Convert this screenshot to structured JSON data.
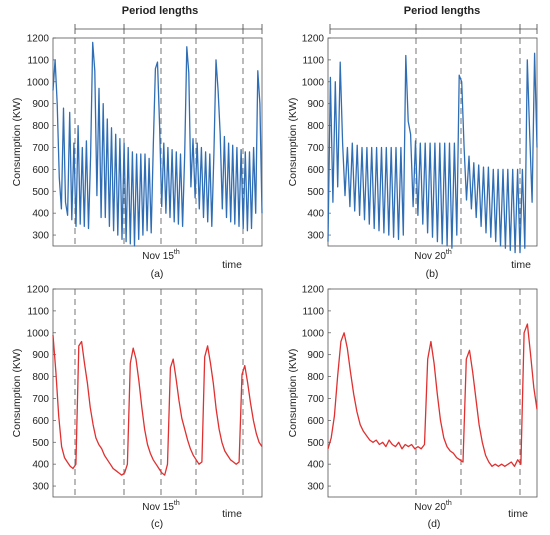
{
  "chart_data": [
    {
      "id": "a",
      "type": "line",
      "panel_label": "(a)",
      "top_label": "Period lengths",
      "ylabel": "Consumption (KW)",
      "ylim": [
        250,
        1200
      ],
      "yticks": [
        300,
        400,
        500,
        600,
        700,
        800,
        900,
        1000,
        1100,
        1200
      ],
      "x_markers": [
        {
          "label": "Nov 15",
          "sup": "th"
        }
      ],
      "x_axis_label": "time",
      "grid": false,
      "series": [
        {
          "color": "#2f6eb5",
          "values": [
            960,
            1100,
            900,
            560,
            420,
            880,
            450,
            390,
            860,
            370,
            720,
            340,
            800,
            350,
            700,
            340,
            730,
            330,
            660,
            1180,
            1050,
            480,
            970,
            380,
            900,
            380,
            830,
            340,
            790,
            320,
            760,
            300,
            740,
            280,
            720,
            270,
            700,
            260,
            680,
            250,
            670,
            280,
            670,
            300,
            670,
            320,
            650,
            310,
            710,
            1060,
            1090,
            800,
            430,
            720,
            400,
            700,
            380,
            690,
            360,
            680,
            350,
            670,
            340,
            670,
            1160,
            1040,
            520,
            740,
            470,
            720,
            420,
            700,
            380,
            680,
            360,
            670,
            340,
            670,
            1100,
            960,
            760,
            420,
            750,
            380,
            720,
            360,
            710,
            350,
            700,
            340,
            690,
            330,
            680,
            320,
            680,
            330,
            700,
            400,
            1050,
            900,
            400
          ]
        }
      ]
    },
    {
      "id": "b",
      "type": "line",
      "panel_label": "(b)",
      "top_label": "Period lengths",
      "ylabel": "Consumption (KW)",
      "ylim": [
        250,
        1200
      ],
      "yticks": [
        300,
        400,
        500,
        600,
        700,
        800,
        900,
        1000,
        1100,
        1200
      ],
      "x_markers": [
        {
          "label": "Nov 20",
          "sup": "th"
        }
      ],
      "x_axis_label": "time",
      "grid": false,
      "series": [
        {
          "color": "#2f6eb5",
          "values": [
            270,
            1020,
            450,
            1000,
            520,
            1090,
            720,
            480,
            700,
            430,
            720,
            410,
            710,
            390,
            700,
            370,
            700,
            350,
            700,
            330,
            700,
            320,
            700,
            310,
            700,
            300,
            700,
            290,
            700,
            280,
            700,
            300,
            1120,
            820,
            760,
            430,
            730,
            390,
            720,
            350,
            720,
            310,
            720,
            290,
            720,
            270,
            720,
            260,
            720,
            250,
            720,
            240,
            720,
            300,
            1030,
            1000,
            700,
            460,
            660,
            420,
            630,
            380,
            620,
            340,
            610,
            310,
            610,
            290,
            600,
            270,
            600,
            250,
            600,
            240,
            600,
            230,
            600,
            220,
            600,
            220,
            600,
            240,
            1100,
            760,
            450,
            1130,
            700
          ]
        }
      ]
    },
    {
      "id": "c",
      "type": "line",
      "panel_label": "(c)",
      "ylabel": "Consumption (KW)",
      "ylim": [
        250,
        1200
      ],
      "yticks": [
        300,
        400,
        500,
        600,
        700,
        800,
        900,
        1000,
        1100,
        1200
      ],
      "x_markers": [
        {
          "label": "Nov 15",
          "sup": "th"
        }
      ],
      "x_axis_label": "time",
      "grid": false,
      "series": [
        {
          "color": "#e03030",
          "values": [
            990,
            820,
            620,
            480,
            430,
            410,
            390,
            380,
            400,
            940,
            960,
            860,
            770,
            660,
            580,
            520,
            490,
            470,
            440,
            420,
            400,
            380,
            370,
            360,
            350,
            360,
            400,
            860,
            930,
            880,
            780,
            660,
            560,
            490,
            450,
            420,
            400,
            380,
            360,
            350,
            400,
            840,
            880,
            790,
            690,
            610,
            560,
            510,
            470,
            440,
            420,
            400,
            410,
            890,
            940,
            860,
            770,
            650,
            560,
            500,
            460,
            440,
            420,
            410,
            400,
            410,
            810,
            850,
            770,
            680,
            600,
            540,
            500,
            480
          ]
        }
      ]
    },
    {
      "id": "d",
      "type": "line",
      "panel_label": "(d)",
      "ylabel": "Consumption (KW)",
      "ylim": [
        250,
        1200
      ],
      "yticks": [
        300,
        400,
        500,
        600,
        700,
        800,
        900,
        1000,
        1100,
        1200
      ],
      "x_markers": [
        {
          "label": "Nov 20",
          "sup": "th"
        }
      ],
      "x_axis_label": "time",
      "grid": false,
      "series": [
        {
          "color": "#e03030",
          "values": [
            470,
            520,
            620,
            800,
            960,
            1000,
            930,
            820,
            720,
            640,
            580,
            550,
            530,
            510,
            500,
            510,
            490,
            500,
            480,
            510,
            490,
            480,
            500,
            470,
            490,
            480,
            490,
            470,
            480,
            470,
            490,
            880,
            960,
            860,
            720,
            600,
            520,
            480,
            460,
            450,
            430,
            420,
            410,
            880,
            920,
            820,
            700,
            580,
            500,
            440,
            410,
            390,
            400,
            390,
            400,
            390,
            400,
            410,
            390,
            420,
            400,
            1000,
            1040,
            900,
            750,
            650
          ]
        }
      ]
    }
  ]
}
